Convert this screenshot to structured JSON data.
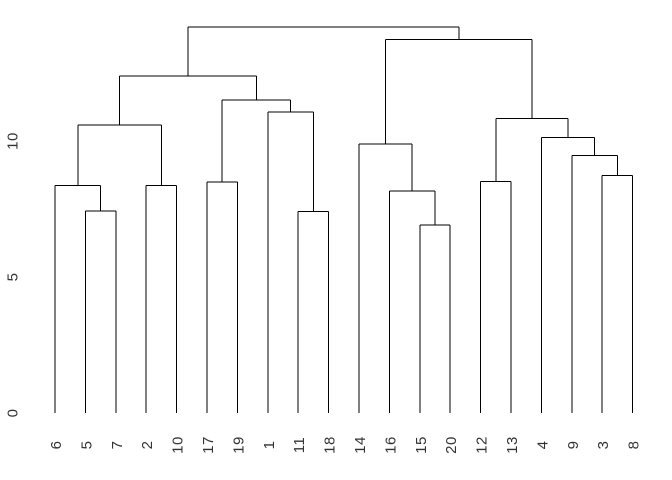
{
  "window": {
    "background_color": "#ffffff",
    "line_color": "#000000",
    "label_color": "#333333"
  },
  "chart_data": {
    "type": "dendrogram",
    "title": "",
    "xlabel": "",
    "ylabel": "",
    "legend": null,
    "grid": false,
    "orientation": "vertical",
    "leaves_drop_to_zero": true,
    "ylim": [
      0,
      14.6
    ],
    "yticks": [
      "0",
      "5",
      "10"
    ],
    "ytick_values": [
      0,
      5,
      10
    ],
    "leaf_order": [
      "6",
      "5",
      "7",
      "2",
      "10",
      "17",
      "19",
      "1",
      "11",
      "18",
      "14",
      "16",
      "15",
      "20",
      "12",
      "13",
      "4",
      "9",
      "3",
      "8"
    ],
    "tree": {
      "h": 14.2,
      "c": [
        {
          "h": 12.39,
          "c": [
            {
              "h": 10.59,
              "c": [
                {
                  "h": 8.37,
                  "c": [
                    {
                      "leaf": "6"
                    },
                    {
                      "h": 7.43,
                      "c": [
                        {
                          "leaf": "5"
                        },
                        {
                          "leaf": "7"
                        }
                      ]
                    }
                  ]
                },
                {
                  "h": 8.37,
                  "c": [
                    {
                      "leaf": "2"
                    },
                    {
                      "leaf": "10"
                    }
                  ]
                }
              ]
            },
            {
              "h": 11.51,
              "c": [
                {
                  "h": 8.5,
                  "c": [
                    {
                      "leaf": "17"
                    },
                    {
                      "leaf": "19"
                    }
                  ]
                },
                {
                  "h": 11.07,
                  "c": [
                    {
                      "leaf": "1"
                    },
                    {
                      "h": 7.4,
                      "c": [
                        {
                          "leaf": "11"
                        },
                        {
                          "leaf": "18"
                        }
                      ]
                    }
                  ]
                }
              ]
            }
          ]
        },
        {
          "h": 13.74,
          "c": [
            {
              "h": 9.89,
              "c": [
                {
                  "leaf": "14"
                },
                {
                  "h": 8.17,
                  "c": [
                    {
                      "leaf": "16"
                    },
                    {
                      "h": 6.91,
                      "c": [
                        {
                          "leaf": "15"
                        },
                        {
                          "leaf": "20"
                        }
                      ]
                    }
                  ]
                }
              ]
            },
            {
              "h": 10.83,
              "c": [
                {
                  "h": 8.52,
                  "c": [
                    {
                      "leaf": "12"
                    },
                    {
                      "leaf": "13"
                    }
                  ]
                },
                {
                  "h": 10.12,
                  "c": [
                    {
                      "leaf": "4"
                    },
                    {
                      "h": 9.47,
                      "c": [
                        {
                          "leaf": "9"
                        },
                        {
                          "h": 8.74,
                          "c": [
                            {
                              "leaf": "3"
                            },
                            {
                              "leaf": "8"
                            }
                          ]
                        }
                      ]
                    }
                  ]
                }
              ]
            }
          ]
        }
      ]
    }
  }
}
